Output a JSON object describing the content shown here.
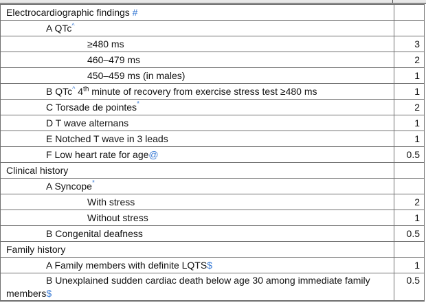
{
  "rows": [
    {
      "text": "Electrocardiographic findings ",
      "mark": "#",
      "value": ""
    },
    {
      "text": "A QTc",
      "caret": "^",
      "value": ""
    },
    {
      "text": "≥480 ms",
      "value": "3"
    },
    {
      "text": "460–479 ms",
      "value": "2"
    },
    {
      "text": "450–459 ms (in males)",
      "value": "1"
    },
    {
      "text": "B QTc",
      "caret": "^",
      "sup": "th",
      "pre_sup": " 4",
      "post_sup": " minute of recovery from exercise stress test ≥480 ms",
      "value": "1"
    },
    {
      "text": "C Torsade de pointes",
      "ast": "*",
      "value": "2"
    },
    {
      "text": "D T wave alternans",
      "value": "1"
    },
    {
      "text": "E Notched T wave in 3 leads",
      "value": "1"
    },
    {
      "text": "F Low heart rate for age",
      "mark": "@",
      "value": "0.5"
    },
    {
      "text": "Clinical history",
      "value": ""
    },
    {
      "text": "A Syncope",
      "ast": "*",
      "value": ""
    },
    {
      "text": "With stress",
      "value": "2"
    },
    {
      "text": "Without stress",
      "value": "1"
    },
    {
      "text": "B Congenital deafness",
      "value": "0.5"
    },
    {
      "text": "Family history",
      "value": ""
    },
    {
      "text": "A Family members with definite LQTS",
      "mark": "$",
      "value": "1"
    },
    {
      "text": "B Unexplained sudden cardiac death below age 30 among immediate family members",
      "mark": "$",
      "value": "0.5"
    }
  ],
  "colors": {
    "marker": "#3a7bd5",
    "border": "#6f6f6f"
  }
}
